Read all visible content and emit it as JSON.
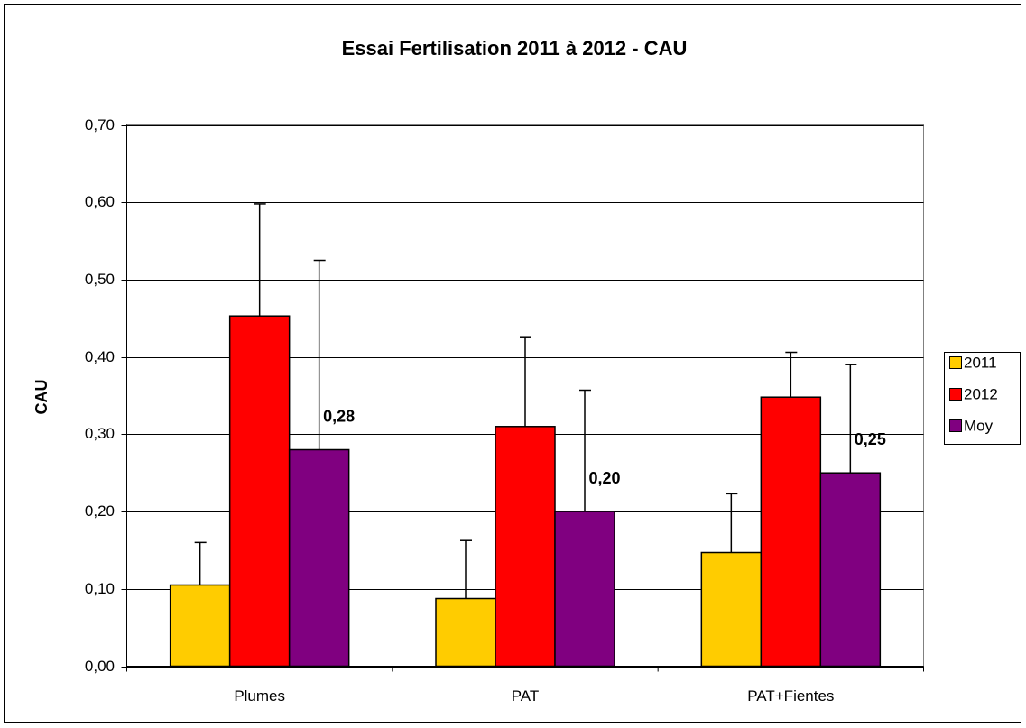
{
  "chart_data": {
    "type": "bar",
    "title": "Essai Fertilisation 2011 à 2012 - CAU",
    "ylabel": "CAU",
    "categories": [
      "Plumes",
      "PAT",
      "PAT+Fientes"
    ],
    "series": [
      {
        "name": "2011",
        "color": "#ffcc00",
        "values": [
          0.105,
          0.0875,
          0.147
        ],
        "errors": [
          0.055,
          0.075,
          0.076
        ]
      },
      {
        "name": "2012",
        "color": "#ff0000",
        "values": [
          0.453,
          0.31,
          0.348
        ],
        "errors": [
          0.145,
          0.115,
          0.058
        ]
      },
      {
        "name": "Moy",
        "color": "#800080",
        "values": [
          0.28,
          0.2,
          0.25
        ],
        "errors": [
          0.245,
          0.157,
          0.14
        ],
        "value_labels": [
          "0,28",
          "0,20",
          "0,25"
        ]
      }
    ],
    "ylim": [
      0,
      0.7
    ],
    "yticks": [
      {
        "value": 0,
        "label": "0,00"
      },
      {
        "value": 0.1,
        "label": "0,10"
      },
      {
        "value": 0.2,
        "label": "0,20"
      },
      {
        "value": 0.3,
        "label": "0,30"
      },
      {
        "value": 0.4,
        "label": "0,40"
      },
      {
        "value": 0.5,
        "label": "0,50"
      },
      {
        "value": 0.6,
        "label": "0,60"
      },
      {
        "value": 0.7,
        "label": "0,70"
      }
    ],
    "grid": true,
    "legend": "right"
  }
}
